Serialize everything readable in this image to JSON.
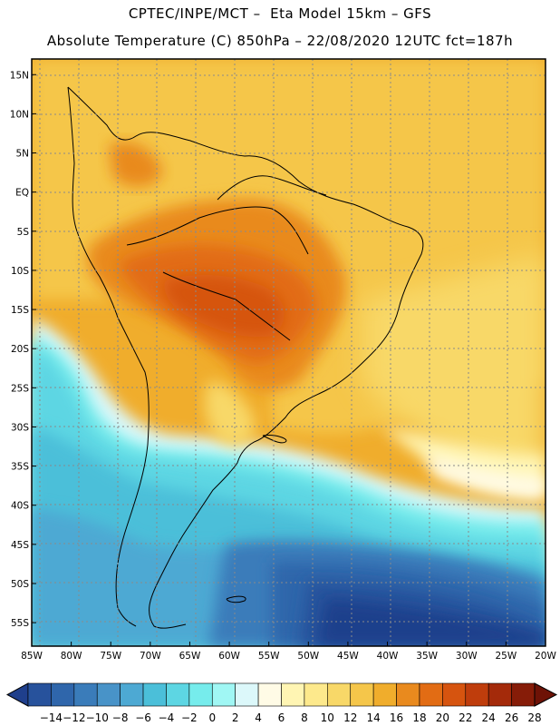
{
  "header": {
    "line1": "CPTEC/INPE/MCT –  Eta Model 15km – GFS",
    "line2": "Absolute Temperature (C) 850hPa – 22/08/2020 12UTC fct=187h"
  },
  "map": {
    "lat_labels": [
      "15N",
      "10N",
      "5N",
      "EQ",
      "5S",
      "10S",
      "15S",
      "20S",
      "25S",
      "30S",
      "35S",
      "40S",
      "45S",
      "50S",
      "55S"
    ],
    "lat_values": [
      15,
      10,
      5,
      0,
      -5,
      -10,
      -15,
      -20,
      -25,
      -30,
      -35,
      -40,
      -45,
      -50,
      -55
    ],
    "lon_labels": [
      "85W",
      "80W",
      "75W",
      "70W",
      "65W",
      "60W",
      "55W",
      "50W",
      "45W",
      "40W",
      "35W",
      "30W",
      "25W",
      "20W"
    ],
    "lon_values": [
      -85,
      -80,
      -75,
      -70,
      -65,
      -60,
      -55,
      -50,
      -45,
      -40,
      -35,
      -30,
      -25,
      -20
    ],
    "lon_range": [
      -85,
      -20
    ],
    "lat_range": [
      -58,
      17
    ]
  },
  "colorbar": {
    "labels": [
      "-14",
      "-12",
      "-10",
      "-8",
      "-6",
      "-4",
      "-2",
      "0",
      "2",
      "4",
      "6",
      "8",
      "10",
      "12",
      "14",
      "16",
      "18",
      "20",
      "22",
      "24",
      "26",
      "28"
    ],
    "colors": [
      "#1f3f8c",
      "#27529c",
      "#2f66ab",
      "#3a7cba",
      "#4893c8",
      "#4da9d3",
      "#4bbfd9",
      "#5dd6e3",
      "#76ecec",
      "#a0f7f4",
      "#dcf8fa",
      "#fffbe6",
      "#fff5b3",
      "#fde98c",
      "#f8d868",
      "#f5c64a",
      "#f0ad2c",
      "#e98a1e",
      "#e26c14",
      "#d6540f",
      "#bf3d0c",
      "#a42a0a",
      "#861c08",
      "#6e1206"
    ]
  }
}
